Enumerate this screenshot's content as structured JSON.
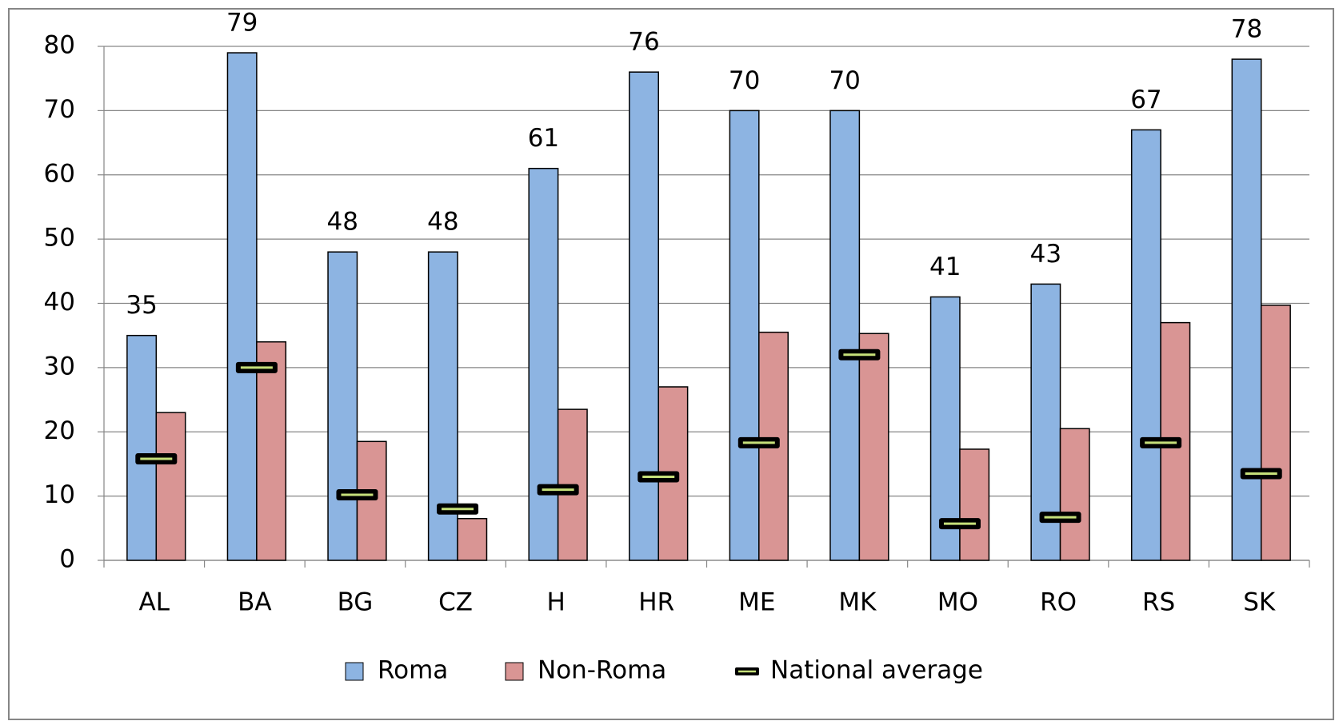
{
  "chart_data": {
    "type": "bar",
    "categories": [
      "AL",
      "BA",
      "BG",
      "CZ",
      "H",
      "HR",
      "ME",
      "MK",
      "MO",
      "RO",
      "RS",
      "SK"
    ],
    "series": [
      {
        "name": "Roma",
        "color": "#8db4e2",
        "values": [
          35,
          79,
          48,
          48,
          61,
          76,
          70,
          70,
          41,
          43,
          67,
          78
        ]
      },
      {
        "name": "Non-Roma",
        "color": "#d99594",
        "values": [
          23,
          34,
          18.5,
          6.5,
          23.5,
          27,
          35.5,
          35.3,
          17.3,
          20.5,
          37,
          39.7
        ]
      },
      {
        "name": "National average",
        "color": "#000000",
        "values": [
          15.8,
          30,
          10.2,
          8,
          11,
          13,
          18.3,
          32,
          5.7,
          6.7,
          18.3,
          13.5
        ]
      }
    ],
    "ylim": [
      0,
      80
    ],
    "yticks": [
      0,
      10,
      20,
      30,
      40,
      50,
      60,
      70,
      80
    ],
    "grid": true,
    "legend": "bottom"
  }
}
